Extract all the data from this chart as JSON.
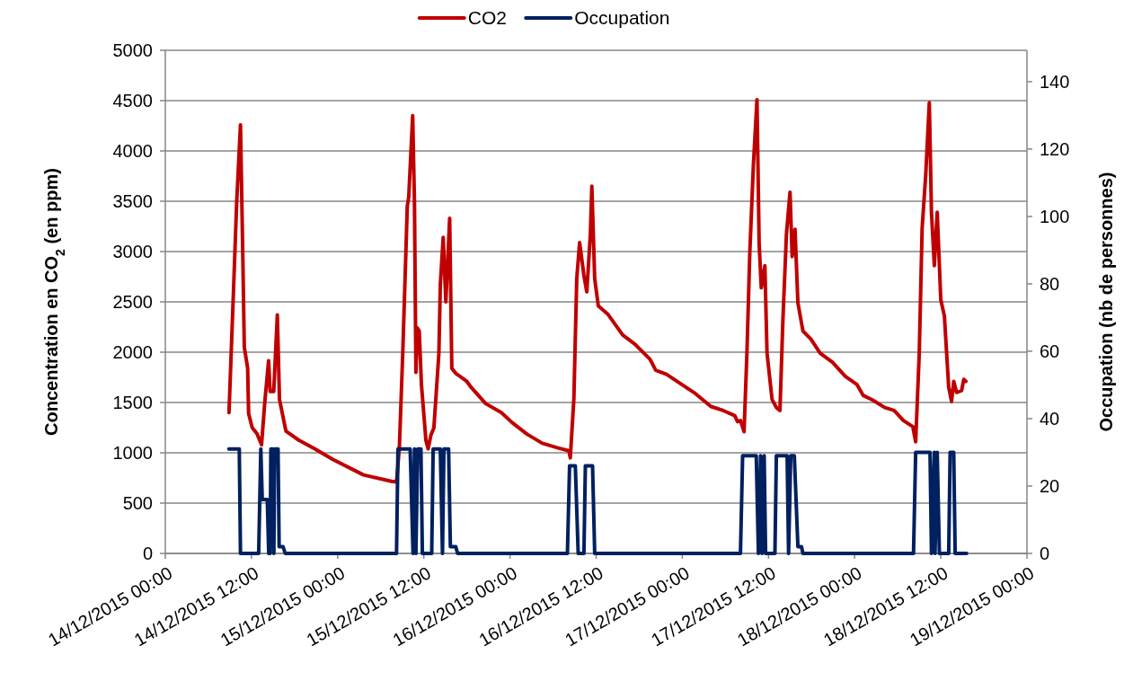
{
  "chart_data": {
    "type": "line",
    "ylabel": "Concentration en CO$_{2}$ (en ppm)",
    "y2label": "Occupation (nb de personnes)",
    "legend": "top",
    "grid": "y",
    "xlim": [
      "2015-12-14T00:00",
      "2015-12-19T00:00"
    ],
    "xticks": [
      {
        "value": "2015-12-14T00:00",
        "label": "14/12/2015 00:00"
      },
      {
        "value": "2015-12-14T12:00",
        "label": "14/12/2015 12:00"
      },
      {
        "value": "2015-12-15T00:00",
        "label": "15/12/2015 00:00"
      },
      {
        "value": "2015-12-15T12:00",
        "label": "15/12/2015 12:00"
      },
      {
        "value": "2015-12-16T00:00",
        "label": "16/12/2015 00:00"
      },
      {
        "value": "2015-12-16T12:00",
        "label": "16/12/2015 12:00"
      },
      {
        "value": "2015-12-17T00:00",
        "label": "17/12/2015 00:00"
      },
      {
        "value": "2015-12-17T12:00",
        "label": "17/12/2015 12:00"
      },
      {
        "value": "2015-12-18T00:00",
        "label": "18/12/2015 00:00"
      },
      {
        "value": "2015-12-18T12:00",
        "label": "18/12/2015 12:00"
      },
      {
        "value": "2015-12-19T00:00",
        "label": "19/12/2015 00:00"
      }
    ],
    "ylim": [
      0,
      5000
    ],
    "yticks": [
      0,
      500,
      1000,
      1500,
      2000,
      2500,
      3000,
      3500,
      4000,
      4500,
      5000
    ],
    "y2lim": [
      0,
      149.3
    ],
    "y2ticks": [
      0,
      20,
      40,
      60,
      80,
      100,
      120,
      140
    ],
    "series": [
      {
        "name": "CO2",
        "color": "#c00000",
        "axis": "y",
        "x": [
          "2015-12-14T08:52",
          "2015-12-14T09:30",
          "2015-12-14T09:56",
          "2015-12-14T10:28",
          "2015-12-14T10:48",
          "2015-12-14T11:00",
          "2015-12-14T11:28",
          "2015-12-14T11:36",
          "2015-12-14T12:06",
          "2015-12-14T12:46",
          "2015-12-14T13:24",
          "2015-12-14T13:51",
          "2015-12-14T14:23",
          "2015-12-14T14:36",
          "2015-12-14T15:06",
          "2015-12-14T15:36",
          "2015-12-14T15:54",
          "2015-12-14T16:48",
          "2015-12-14T18:36",
          "2015-12-14T20:48",
          "2015-12-14T23:18",
          "2015-12-15T03:36",
          "2015-12-15T07:30",
          "2015-12-15T08:12",
          "2015-12-15T08:36",
          "2015-12-15T09:04",
          "2015-12-15T09:42",
          "2015-12-15T09:54",
          "2015-12-15T10:27",
          "2015-12-15T10:42",
          "2015-12-15T10:54",
          "2015-12-15T11:06",
          "2015-12-15T11:22",
          "2015-12-15T11:40",
          "2015-12-15T12:18",
          "2015-12-15T12:36",
          "2015-12-15T13:00",
          "2015-12-15T13:24",
          "2015-12-15T14:06",
          "2015-12-15T14:18",
          "2015-12-15T14:42",
          "2015-12-15T15:04",
          "2015-12-15T15:36",
          "2015-12-15T15:54",
          "2015-12-15T16:27",
          "2015-12-15T17:59",
          "2015-12-15T18:36",
          "2015-12-15T20:36",
          "2015-12-15T22:48",
          "2015-12-16T00:18",
          "2015-12-16T02:24",
          "2015-12-16T04:30",
          "2015-12-16T06:36",
          "2015-12-16T08:12",
          "2015-12-16T08:24",
          "2015-12-16T08:54",
          "2015-12-16T09:18",
          "2015-12-16T09:42",
          "2015-12-16T10:18",
          "2015-12-16T10:42",
          "2015-12-16T11:12",
          "2015-12-16T11:24",
          "2015-12-16T11:48",
          "2015-12-16T12:18",
          "2015-12-16T13:36",
          "2015-12-16T15:42",
          "2015-12-16T17:24",
          "2015-12-16T19:30",
          "2015-12-16T20:18",
          "2015-12-16T21:48",
          "2015-12-17T00:06",
          "2015-12-17T01:48",
          "2015-12-17T04:00",
          "2015-12-17T05:42",
          "2015-12-17T07:18",
          "2015-12-17T07:42",
          "2015-12-17T08:06",
          "2015-12-17T08:36",
          "2015-12-17T09:00",
          "2015-12-17T09:24",
          "2015-12-17T09:54",
          "2015-12-17T10:24",
          "2015-12-17T10:42",
          "2015-12-17T11:00",
          "2015-12-17T11:30",
          "2015-12-17T11:48",
          "2015-12-17T12:30",
          "2015-12-17T13:06",
          "2015-12-17T13:36",
          "2015-12-17T14:00",
          "2015-12-17T14:30",
          "2015-12-17T15:00",
          "2015-12-17T15:18",
          "2015-12-17T15:42",
          "2015-12-17T16:06",
          "2015-12-17T16:48",
          "2015-12-17T17:54",
          "2015-12-17T19:12",
          "2015-12-17T20:54",
          "2015-12-17T22:42",
          "2015-12-18T00:18",
          "2015-12-18T01:12",
          "2015-12-18T02:30",
          "2015-12-18T04:12",
          "2015-12-18T05:30",
          "2015-12-18T06:48",
          "2015-12-18T08:06",
          "2015-12-18T08:30",
          "2015-12-18T09:00",
          "2015-12-18T09:24",
          "2015-12-18T09:54",
          "2015-12-18T10:24",
          "2015-12-18T10:42",
          "2015-12-18T11:06",
          "2015-12-18T11:30",
          "2015-12-18T12:00",
          "2015-12-18T12:30",
          "2015-12-18T13:06",
          "2015-12-18T13:30",
          "2015-12-18T13:48",
          "2015-12-18T14:12",
          "2015-12-18T14:54",
          "2015-12-18T15:12",
          "2015-12-18T15:30"
        ],
        "values": [
          1400,
          2620,
          3480,
          4260,
          2920,
          2050,
          1840,
          1390,
          1250,
          1190,
          1080,
          1500,
          1915,
          1610,
          1610,
          2370,
          1530,
          1215,
          1125,
          1040,
          935,
          780,
          717,
          710,
          1060,
          1990,
          3450,
          3540,
          4350,
          3480,
          1800,
          2240,
          2210,
          1680,
          1120,
          1040,
          1180,
          1245,
          1990,
          2670,
          3140,
          2500,
          3330,
          1840,
          1790,
          1710,
          1650,
          1490,
          1400,
          1300,
          1184,
          1095,
          1050,
          1020,
          950,
          1540,
          2730,
          3090,
          2760,
          2600,
          3180,
          3650,
          2730,
          2460,
          2380,
          2170,
          2080,
          1930,
          1820,
          1780,
          1670,
          1590,
          1460,
          1420,
          1370,
          1310,
          1320,
          1210,
          1990,
          2990,
          3860,
          4510,
          3080,
          2640,
          2860,
          1990,
          1530,
          1450,
          1420,
          2300,
          3170,
          3590,
          2950,
          3220,
          2490,
          2210,
          2130,
          1990,
          1900,
          1760,
          1680,
          1570,
          1525,
          1450,
          1420,
          1320,
          1260,
          1110,
          1990,
          3230,
          3760,
          4480,
          3390,
          2860,
          3390,
          2520,
          2360,
          1650,
          1510,
          1710,
          1600,
          1620,
          1730,
          1710
        ]
      },
      {
        "name": "Occupation",
        "color": "#002060",
        "axis": "y2",
        "x": [
          "2015-12-14T08:51",
          "2015-12-14T10:18",
          "2015-12-14T10:28",
          "2015-12-14T13:00",
          "2015-12-14T13:18",
          "2015-12-14T13:30",
          "2015-12-14T14:12",
          "2015-12-14T14:24",
          "2015-12-14T14:36",
          "2015-12-14T14:42",
          "2015-12-14T15:00",
          "2015-12-14T15:07",
          "2015-12-14T15:14",
          "2015-12-14T15:42",
          "2015-12-14T15:51",
          "2015-12-14T16:24",
          "2015-12-14T16:42",
          "2015-12-15T08:12",
          "2015-12-15T08:24",
          "2015-12-15T10:06",
          "2015-12-15T10:30",
          "2015-12-15T10:42",
          "2015-12-15T10:54",
          "2015-12-15T11:09",
          "2015-12-15T11:36",
          "2015-12-15T11:48",
          "2015-12-15T13:06",
          "2015-12-15T13:18",
          "2015-12-15T14:18",
          "2015-12-15T14:36",
          "2015-12-15T14:48",
          "2015-12-15T15:27",
          "2015-12-15T15:42",
          "2015-12-15T16:27",
          "2015-12-15T16:42",
          "2015-12-16T08:00",
          "2015-12-16T08:18",
          "2015-12-16T09:06",
          "2015-12-16T09:30",
          "2015-12-16T10:18",
          "2015-12-16T10:30",
          "2015-12-16T11:30",
          "2015-12-16T11:48",
          "2015-12-17T08:06",
          "2015-12-17T08:24",
          "2015-12-17T10:18",
          "2015-12-17T10:36",
          "2015-12-17T10:54",
          "2015-12-17T11:06",
          "2015-12-17T11:24",
          "2015-12-17T11:36",
          "2015-12-17T12:54",
          "2015-12-17T13:06",
          "2015-12-17T14:36",
          "2015-12-17T14:48",
          "2015-12-17T15:06",
          "2015-12-17T15:36",
          "2015-12-17T16:06",
          "2015-12-17T16:36",
          "2015-12-17T16:48",
          "2015-12-18T08:12",
          "2015-12-18T08:30",
          "2015-12-18T10:30",
          "2015-12-18T10:42",
          "2015-12-18T11:06",
          "2015-12-18T11:12",
          "2015-12-18T11:30",
          "2015-12-18T11:48",
          "2015-12-18T13:06",
          "2015-12-18T13:18",
          "2015-12-18T13:48",
          "2015-12-18T14:00",
          "2015-12-18T15:36"
        ],
        "values": [
          31,
          31,
          0,
          0,
          31,
          16,
          16,
          0,
          0,
          31,
          31,
          0,
          31,
          31,
          2,
          2,
          0,
          0,
          31,
          31,
          0,
          31,
          0,
          31,
          31,
          0,
          0,
          31,
          31,
          0,
          31,
          31,
          2,
          2,
          0,
          0,
          26,
          26,
          0,
          0,
          26,
          26,
          0,
          0,
          29,
          29,
          0,
          29,
          0,
          29,
          0,
          0,
          29,
          29,
          0,
          29,
          29,
          2,
          2,
          0,
          0,
          30,
          30,
          0,
          30,
          0,
          30,
          0,
          0,
          30,
          30,
          0,
          0
        ]
      }
    ]
  }
}
